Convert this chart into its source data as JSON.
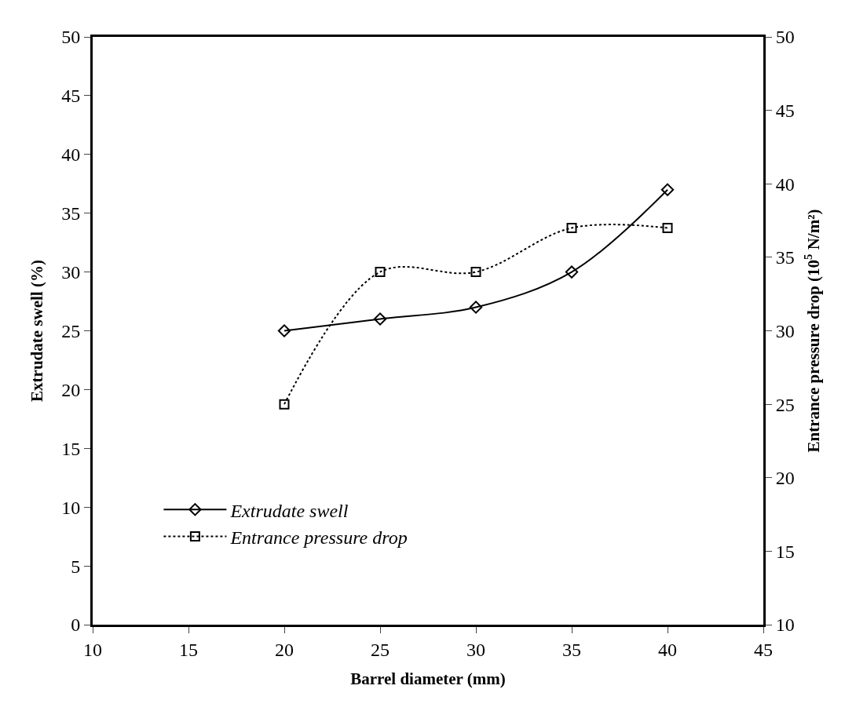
{
  "chart_data": {
    "type": "line",
    "xlabel": "Barrel diameter (mm)",
    "ylabel": "Extrudate swell (%)",
    "y2label": "Entrance pressure drop (10$^{5}$ N/m²)",
    "x": [
      20,
      25,
      30,
      35,
      40
    ],
    "series": [
      {
        "name": "Extrudate swell",
        "color": "#000000",
        "marker": "diamond",
        "line_style": "solid",
        "values": [
          25,
          26,
          27,
          30,
          37
        ]
      },
      {
        "name": "Entrance pressure drop",
        "color": "#000000",
        "marker": "square",
        "line_style": "dotted",
        "axis": "y2",
        "values": [
          25,
          34,
          34,
          37,
          37
        ]
      }
    ],
    "xlim": [
      10,
      45
    ],
    "xticks": [
      10,
      15,
      20,
      25,
      30,
      35,
      40,
      45
    ],
    "ylim": [
      0,
      50
    ],
    "yticks": [
      0,
      5,
      10,
      15,
      20,
      25,
      30,
      35,
      40,
      45,
      50
    ],
    "y2lim": [
      10,
      50
    ],
    "y2ticks": [
      10,
      15,
      20,
      25,
      30,
      35,
      40,
      45,
      50
    ],
    "grid": false,
    "legend": "bottom left"
  }
}
